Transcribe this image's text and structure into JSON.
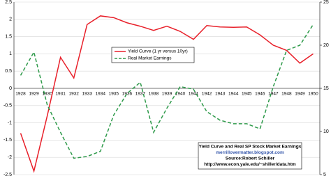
{
  "chart_data": {
    "type": "line",
    "categories": [
      "1928",
      "1929",
      "1930",
      "1931",
      "1932",
      "1933",
      "1934",
      "1935",
      "1936",
      "1937",
      "1938",
      "1939",
      "1940",
      "1941",
      "1942",
      "1943",
      "1944",
      "1945",
      "1946",
      "1947",
      "1948",
      "1949",
      "1950"
    ],
    "series": [
      {
        "name": "Yield Curve (1 yr versus 10yr)",
        "color": "#e8202a",
        "dash": "solid",
        "values": [
          -1.3,
          -2.4,
          -0.8,
          0.9,
          0.3,
          1.85,
          2.1,
          2.05,
          1.9,
          1.8,
          1.68,
          1.8,
          1.65,
          1.42,
          1.82,
          1.78,
          1.77,
          1.78,
          1.55,
          1.25,
          1.1,
          0.73,
          1.0
        ]
      },
      {
        "name": "Real Market Earnings",
        "color": "#2e9a4a",
        "dash": "dashed",
        "axis": "y2",
        "values": [
          16.5,
          19.2,
          13.1,
          9.9,
          6.9,
          7.1,
          7.7,
          11.9,
          14.4,
          15.7,
          9.9,
          12.7,
          15.2,
          14.9,
          12.3,
          11.3,
          10.9,
          10.9,
          10.3,
          15.2,
          19.4,
          20.0,
          22.4
        ]
      }
    ],
    "ylim": [
      -2.5,
      2.5
    ],
    "yticks": [
      -2.5,
      -2,
      -1.5,
      -1,
      -0.5,
      0,
      0.5,
      1,
      1.5,
      2,
      2.5
    ],
    "y2lim": [
      5,
      25
    ],
    "y2ticks": [
      5,
      10,
      15,
      20,
      25
    ],
    "grid": true,
    "annotations": [
      "Yield Curve and Real SP Stock Market Earnings",
      "merrillovermatter.blogspot.com",
      "Source:Robert Schiller",
      "http://www.econ.yale.edu/~shiller/data.htm"
    ]
  }
}
